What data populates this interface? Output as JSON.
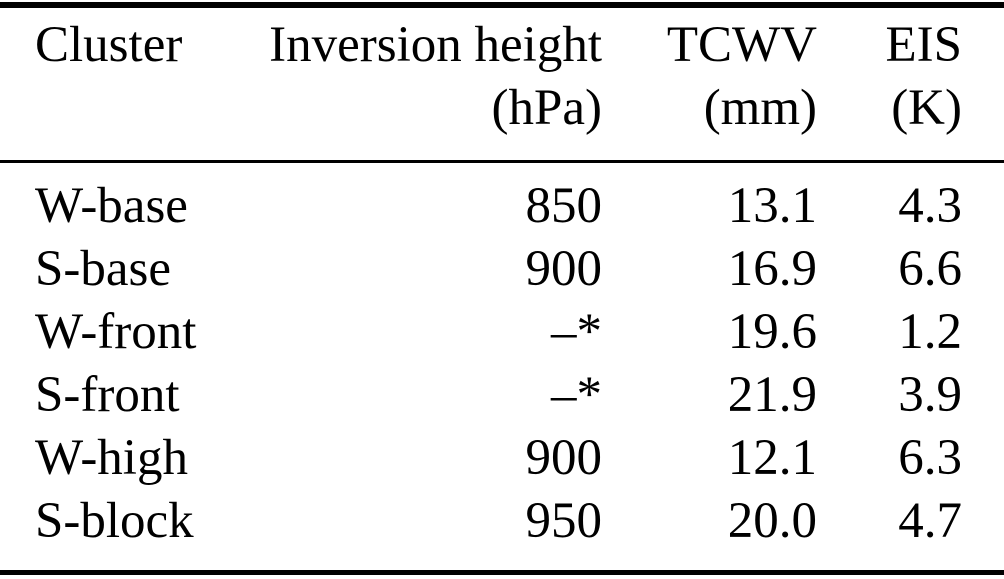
{
  "table": {
    "header": {
      "col1": {
        "line1": "Cluster",
        "line2": ""
      },
      "col2": {
        "line1": "Inversion height",
        "line2": "(hPa)"
      },
      "col3": {
        "line1": "TCWV",
        "line2": "(mm)"
      },
      "col4": {
        "line1": "EIS",
        "line2": "(K)"
      }
    },
    "rows": [
      {
        "cluster": "W-base",
        "inversion_height_hpa": "850",
        "tcwv_mm": "13.1",
        "eis_k": "4.3"
      },
      {
        "cluster": "S-base",
        "inversion_height_hpa": "900",
        "tcwv_mm": "16.9",
        "eis_k": "6.6"
      },
      {
        "cluster": "W-front",
        "inversion_height_hpa": "–*",
        "tcwv_mm": "19.6",
        "eis_k": "1.2"
      },
      {
        "cluster": "S-front",
        "inversion_height_hpa": "–*",
        "tcwv_mm": "21.9",
        "eis_k": "3.9"
      },
      {
        "cluster": "W-high",
        "inversion_height_hpa": "900",
        "tcwv_mm": "12.1",
        "eis_k": "6.3"
      },
      {
        "cluster": "S-block",
        "inversion_height_hpa": "950",
        "tcwv_mm": "20.0",
        "eis_k": "4.7"
      }
    ],
    "missing_value_marker": "–*"
  },
  "colors": {
    "text": "#000000",
    "background": "#ffffff",
    "rule": "#000000"
  }
}
